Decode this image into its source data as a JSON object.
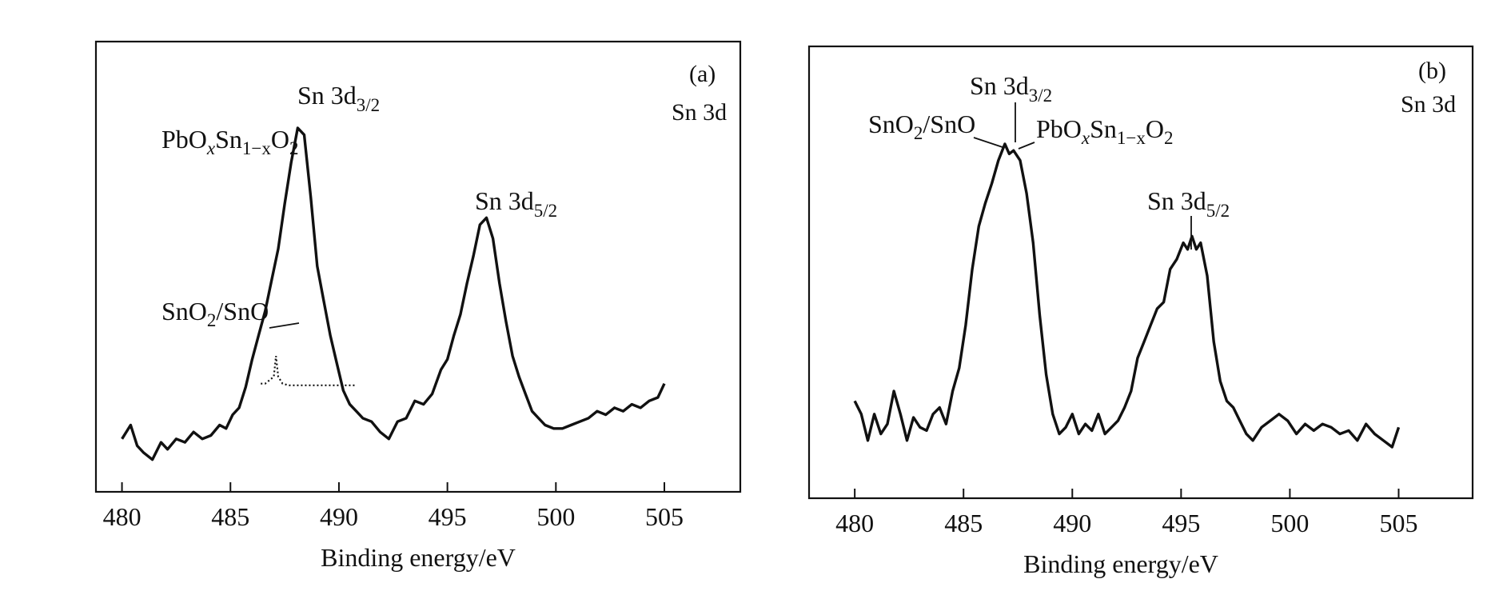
{
  "chart_data": [
    {
      "type": "line",
      "panel_label": "(a)",
      "subtitle": "Sn 3d",
      "xlabel": "Binding energy/eV",
      "ylabel": "",
      "xlim": [
        478.8,
        508.5
      ],
      "ylim": [
        0,
        100
      ],
      "xticks": [
        480,
        485,
        490,
        495,
        500,
        505
      ],
      "grid": false,
      "legend": "none",
      "series": [
        {
          "x": [
            480.0,
            480.4,
            480.7,
            481.0,
            481.4,
            481.8,
            482.1,
            482.5,
            482.9,
            483.3,
            483.7,
            484.1,
            484.5,
            484.8,
            485.1,
            485.4,
            485.7,
            486.0,
            486.3,
            486.6,
            486.9,
            487.2,
            487.5,
            487.8,
            488.1,
            488.4,
            488.7,
            489.0,
            489.3,
            489.6,
            489.9,
            490.2,
            490.5,
            490.8,
            491.1,
            491.5,
            491.9,
            492.3,
            492.7,
            493.1,
            493.5,
            493.9,
            494.3,
            494.7,
            495.0,
            495.3,
            495.6,
            495.9,
            496.2,
            496.5,
            496.8,
            497.1,
            497.4,
            497.7,
            498.0,
            498.3,
            498.6,
            498.9,
            499.2,
            499.5,
            499.9,
            500.3,
            500.7,
            501.1,
            501.5,
            501.9,
            502.3,
            502.7,
            503.1,
            503.5,
            503.9,
            504.3,
            504.7,
            505.0
          ],
          "values": [
            10,
            14,
            8,
            6,
            4,
            9,
            7,
            10,
            9,
            12,
            10,
            11,
            14,
            13,
            17,
            19,
            25,
            33,
            40,
            47,
            56,
            65,
            78,
            90,
            100,
            98,
            80,
            60,
            50,
            40,
            32,
            24,
            20,
            18,
            16,
            15,
            12,
            10,
            15,
            16,
            21,
            20,
            23,
            30,
            33,
            40,
            46,
            55,
            63,
            72,
            74,
            68,
            55,
            44,
            34,
            28,
            23,
            18,
            16,
            14,
            13,
            13,
            14,
            15,
            16,
            18,
            17,
            19,
            18,
            20,
            19,
            21,
            22,
            26
          ]
        },
        {
          "name": "SnO2/SnO",
          "x": [
            486.4,
            486.6,
            486.8,
            487.0,
            487.1,
            487.2,
            487.4,
            487.7,
            488.0,
            488.5,
            489.0,
            489.5,
            490.0,
            490.5,
            490.8
          ],
          "values": [
            26,
            26,
            27,
            28,
            34,
            28,
            26,
            25.5,
            25.5,
            25.5,
            25.5,
            25.5,
            25.5,
            25.5,
            25.5
          ]
        }
      ],
      "annotations": [
        {
          "id": "sn3d32",
          "text": "Sn 3d",
          "sub": "3/2",
          "x": 488.7
        },
        {
          "id": "pbox",
          "text": "PbO",
          "sub": "x",
          "text2": "Sn",
          "sub2": "1−x",
          "text3": "O",
          "sub3": "2",
          "x": 487.6
        },
        {
          "id": "sn3d52",
          "text": "Sn 3d",
          "sub": "5/2",
          "x": 496.8
        },
        {
          "id": "sno2sno",
          "text": "SnO",
          "sub": "2",
          "text2": "/SnO",
          "x": 487.0
        }
      ]
    },
    {
      "type": "line",
      "panel_label": "(b)",
      "subtitle": "Sn 3d",
      "xlabel": "Binding energy/eV",
      "ylabel": "",
      "xlim": [
        477.9,
        508.4
      ],
      "ylim": [
        0,
        100
      ],
      "xticks": [
        480,
        485,
        490,
        495,
        500,
        505
      ],
      "grid": false,
      "legend": "none",
      "series": [
        {
          "x": [
            480.0,
            480.3,
            480.6,
            480.9,
            481.2,
            481.5,
            481.8,
            482.1,
            482.4,
            482.7,
            483.0,
            483.3,
            483.6,
            483.9,
            484.2,
            484.5,
            484.8,
            485.1,
            485.4,
            485.7,
            486.0,
            486.3,
            486.6,
            486.9,
            487.1,
            487.3,
            487.6,
            487.9,
            488.2,
            488.5,
            488.8,
            489.1,
            489.4,
            489.7,
            490.0,
            490.3,
            490.6,
            490.9,
            491.2,
            491.5,
            491.8,
            492.1,
            492.4,
            492.7,
            493.0,
            493.3,
            493.6,
            493.9,
            494.2,
            494.5,
            494.8,
            495.1,
            495.3,
            495.5,
            495.7,
            495.9,
            496.2,
            496.5,
            496.8,
            497.1,
            497.4,
            497.7,
            498.0,
            498.3,
            498.7,
            499.1,
            499.5,
            499.9,
            500.3,
            500.7,
            501.1,
            501.5,
            501.9,
            502.3,
            502.7,
            503.1,
            503.5,
            503.9,
            504.3,
            504.7,
            505.0
          ],
          "values": [
            22,
            18,
            10,
            18,
            12,
            15,
            25,
            18,
            10,
            17,
            14,
            13,
            18,
            20,
            15,
            25,
            32,
            45,
            62,
            75,
            82,
            88,
            95,
            100,
            97,
            98,
            95,
            85,
            70,
            48,
            30,
            18,
            12,
            14,
            18,
            12,
            15,
            13,
            18,
            12,
            14,
            16,
            20,
            25,
            35,
            40,
            45,
            50,
            52,
            62,
            65,
            70,
            68,
            72,
            68,
            70,
            60,
            40,
            28,
            22,
            20,
            16,
            12,
            10,
            14,
            16,
            18,
            16,
            12,
            15,
            13,
            15,
            14,
            12,
            13,
            10,
            15,
            12,
            10,
            8,
            14
          ]
        }
      ],
      "annotations": [
        {
          "id": "sn3d32",
          "text": "Sn 3d",
          "sub": "3/2",
          "x": 487.2
        },
        {
          "id": "sno2sno",
          "text": "SnO",
          "sub": "2",
          "text2": "/SnO",
          "x": 486.8
        },
        {
          "id": "pbox",
          "text": "PbO",
          "sub": "x",
          "text2": "Sn",
          "sub2": "1−x",
          "text3": "O",
          "sub3": "2",
          "x": 487.3
        },
        {
          "id": "sn3d52",
          "text": "Sn 3d",
          "sub": "5/2",
          "x": 495.6
        }
      ]
    }
  ]
}
